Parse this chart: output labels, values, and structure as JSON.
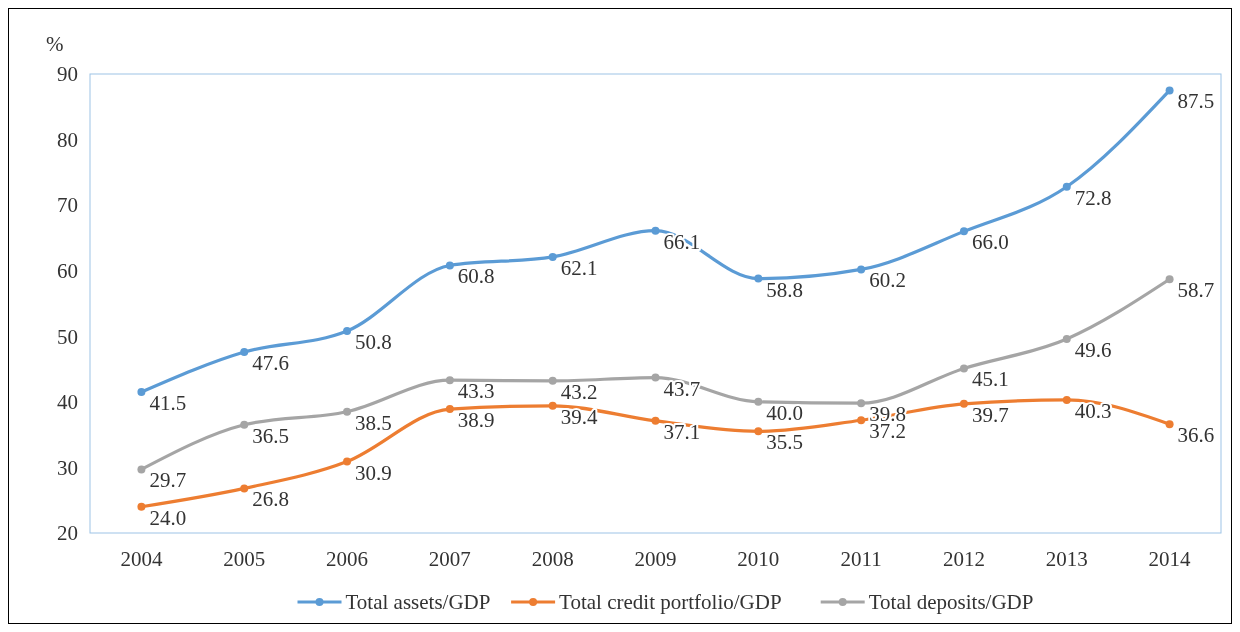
{
  "chart_data": {
    "type": "line",
    "ylabel": "%",
    "categories": [
      "2004",
      "2005",
      "2006",
      "2007",
      "2008",
      "2009",
      "2010",
      "2011",
      "2012",
      "2013",
      "2014"
    ],
    "ylim": [
      20,
      90
    ],
    "yticks": [
      20,
      30,
      40,
      50,
      60,
      70,
      80,
      90
    ],
    "grid": false,
    "legend": "bottom",
    "marker": "circle",
    "line_style": "solid",
    "series": [
      {
        "name": "Total assets/GDP",
        "color": "#5b9bd5",
        "values": [
          41.5,
          47.6,
          50.8,
          60.8,
          62.1,
          66.1,
          58.8,
          60.2,
          66.0,
          72.8,
          87.5
        ],
        "value_labels": [
          "41.5",
          "47.6",
          "50.8",
          "60.8",
          "62.1",
          "66.1",
          "58.8",
          "60.2",
          "66.0",
          "72.8",
          "87.5"
        ]
      },
      {
        "name": "Total credit portfolio/GDP",
        "color": "#ed7d31",
        "values": [
          24.0,
          26.8,
          30.9,
          38.9,
          39.4,
          37.1,
          35.5,
          37.2,
          39.7,
          40.3,
          36.6
        ],
        "value_labels": [
          "24.0",
          "26.8",
          "30.9",
          "38.9",
          "39.4",
          "37.1",
          "35.5",
          "37.2",
          "39.7",
          "40.3",
          "36.6"
        ]
      },
      {
        "name": "Total deposits/GDP",
        "color": "#a5a5a5",
        "values": [
          29.7,
          36.5,
          38.5,
          43.3,
          43.2,
          43.7,
          40.0,
          39.8,
          45.1,
          49.6,
          58.7
        ],
        "value_labels": [
          "29.7",
          "36.5",
          "38.5",
          "43.3",
          "43.2",
          "43.7",
          "40.0",
          "39.8",
          "45.1",
          "49.6",
          "58.7"
        ]
      }
    ]
  }
}
